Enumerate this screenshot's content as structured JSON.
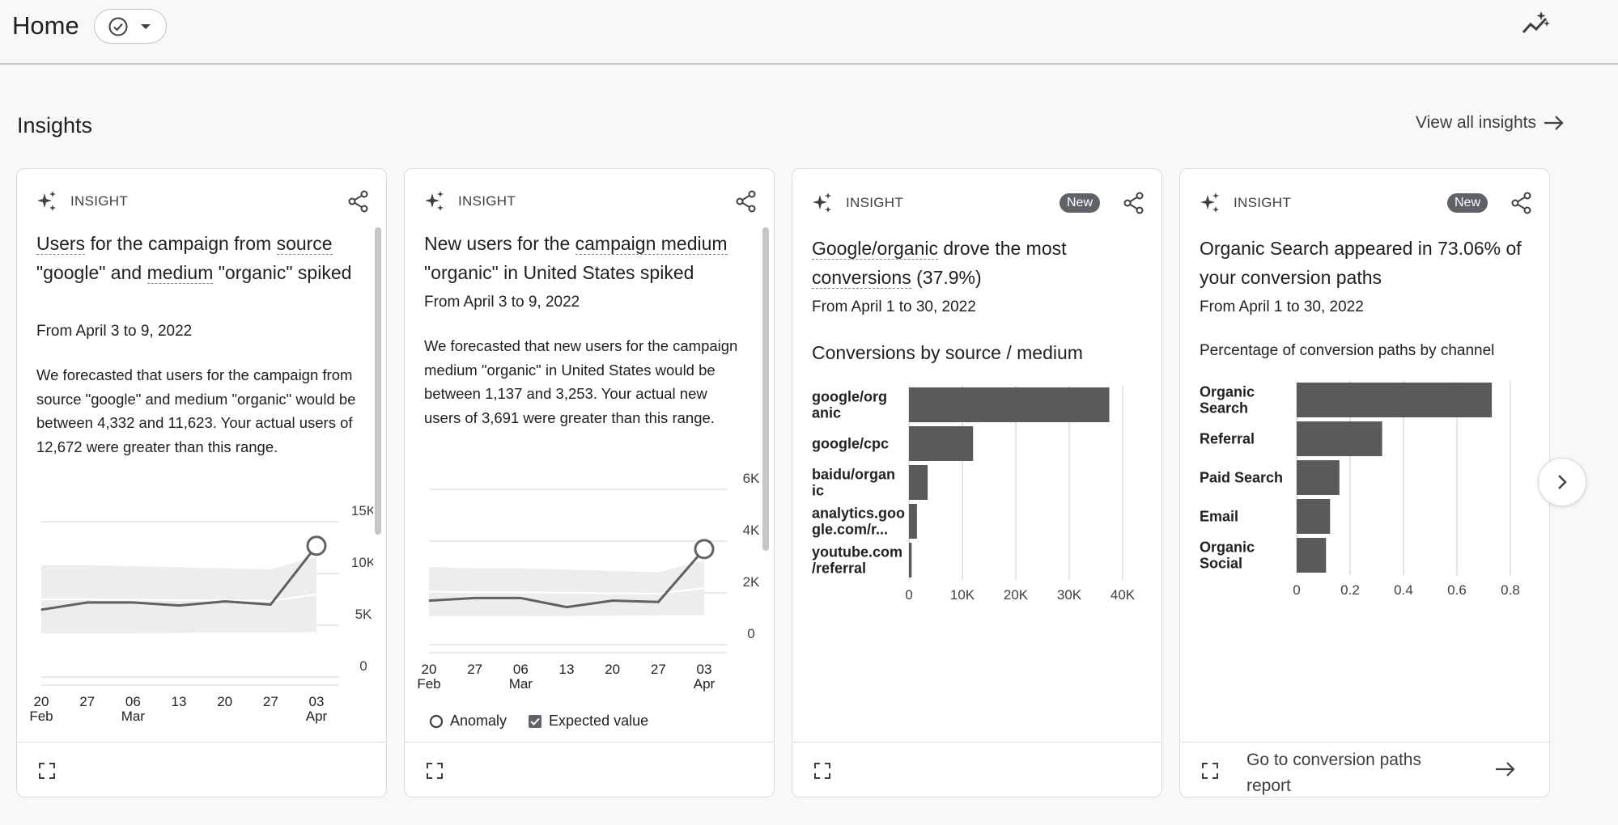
{
  "header": {
    "title": "Home",
    "colors": {
      "divider": "#c6c6c6",
      "bar": "#5f5f5f",
      "band": "#efefef"
    }
  },
  "section": {
    "title": "Insights",
    "view_all": "View all insights"
  },
  "cards": [
    {
      "kind": "INSIGHT",
      "title_parts": [
        "Users",
        " for the campaign from ",
        "source",
        " \"google\" and ",
        "medium",
        " \"organic\" spiked"
      ],
      "date": "From April 3 to 9, 2022",
      "body": "We forecasted that users for the campaign from source \"google\" and medium \"organic\" would be between 4,332 and 11,623. Your actual users of 12,672 were greater than this range."
    },
    {
      "kind": "INSIGHT",
      "title_parts": [
        "New users",
        " for the ",
        "campaign medium",
        " \"organic\" in United States spiked"
      ],
      "date": "From April 3 to 9, 2022",
      "body": "We forecasted that new users for the campaign medium \"organic\" in United States would be between 1,137 and 3,253. Your actual new users of 3,691 were greater than this range.",
      "legend": {
        "anomaly": "Anomaly",
        "expected": "Expected value"
      }
    },
    {
      "kind": "INSIGHT",
      "badge": "New",
      "title_parts": [
        "Google/organic",
        " drove the most ",
        "conversions",
        " (37.9%)"
      ],
      "date": "From April 1 to 30, 2022",
      "chart_title": "Conversions by source / medium"
    },
    {
      "kind": "INSIGHT",
      "badge": "New",
      "title": "Organic Search appeared in 73.06% of your conversion paths",
      "date": "From April 1 to 30, 2022",
      "chart_title": "Percentage of conversion paths by channel",
      "footer_link": "Go to conversion paths report"
    }
  ],
  "chart_data": [
    {
      "type": "line",
      "x_ticks": [
        "20\nFeb",
        "27",
        "06\nMar",
        "13",
        "20",
        "27",
        "03\nApr"
      ],
      "y_ticks": [
        "0",
        "5K",
        "10K",
        "15K"
      ],
      "ylim": [
        0,
        15000
      ],
      "series": [
        {
          "values": [
            6500,
            7200,
            7200,
            6900,
            7300,
            7000,
            12672
          ]
        }
      ],
      "expected_band": {
        "lower": [
          4200,
          4200,
          4200,
          4250,
          4300,
          4300,
          4332
        ],
        "upper": [
          10800,
          10800,
          10700,
          10600,
          10500,
          10400,
          11623
        ]
      },
      "anomaly_index": 6
    },
    {
      "type": "line",
      "x_ticks": [
        "20\nFeb",
        "27",
        "06\nMar",
        "13",
        "20",
        "27",
        "03\nApr"
      ],
      "y_ticks": [
        "0",
        "2K",
        "4K",
        "6K"
      ],
      "ylim": [
        0,
        6000
      ],
      "series": [
        {
          "values": [
            1700,
            1800,
            1800,
            1450,
            1700,
            1650,
            3691
          ]
        }
      ],
      "expected_band": {
        "lower": [
          1100,
          1100,
          1100,
          1110,
          1120,
          1130,
          1137
        ],
        "upper": [
          3000,
          2950,
          2950,
          2900,
          2850,
          2800,
          3253
        ]
      },
      "anomaly_index": 6
    },
    {
      "type": "bar",
      "orientation": "horizontal",
      "categories": [
        "google/org\nanic",
        "google/cpc",
        "baidu/organ\nic",
        "analytics.goo\ngle.com/r...",
        "youtube.com\n/referral"
      ],
      "values": [
        37500,
        12000,
        3500,
        1500,
        500
      ],
      "x_ticks": [
        "0",
        "10K",
        "20K",
        "30K",
        "40K"
      ],
      "xlim": [
        0,
        40000
      ]
    },
    {
      "type": "bar",
      "orientation": "horizontal",
      "categories": [
        "Organic\nSearch",
        "Referral",
        "Paid Search",
        "Email",
        "Organic\nSocial"
      ],
      "values": [
        0.7306,
        0.32,
        0.16,
        0.125,
        0.11
      ],
      "x_ticks": [
        "0",
        "0.2",
        "0.4",
        "0.6",
        "0.8"
      ],
      "xlim": [
        0,
        0.8
      ]
    }
  ]
}
